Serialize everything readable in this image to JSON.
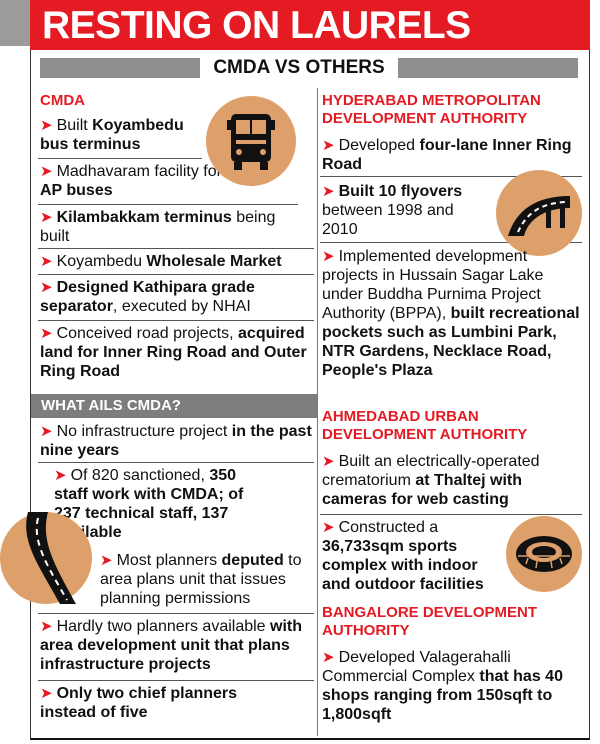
{
  "title": "RESTING ON LAURELS",
  "subtitle": "CMDA VS OTHERS",
  "colors": {
    "accent": "#e51b24",
    "gray_bar": "#8e8e8e",
    "icon_bg": "#dea06a"
  },
  "icons": [
    "bus-icon",
    "road-icon",
    "flyover-icon",
    "stadium-icon"
  ],
  "left": {
    "cmda_head": "CMDA",
    "items": [
      {
        "pre": "Built ",
        "bold": "Koyambedu bus terminus",
        "post": ""
      },
      {
        "pre": "Madhavaram facility for ",
        "bold": "AP buses",
        "post": ""
      },
      {
        "pre": "",
        "bold": "Kilambakkam terminus",
        "post": " being built"
      },
      {
        "pre": "Koyambedu ",
        "bold": "Wholesale Market",
        "post": ""
      },
      {
        "pre": "",
        "bold": "Designed Kathipara grade separator",
        "post": ", executed by NHAI"
      },
      {
        "pre": "Conceived road projects, ",
        "bold": "acquired land for Inner Ring Road and Outer Ring Road",
        "post": ""
      }
    ],
    "ails_head": "WHAT AILS CMDA?",
    "ails": [
      {
        "pre": "No infrastructure project ",
        "bold": "in the past nine years",
        "post": ""
      },
      {
        "pre": "Of 820 sanctioned, ",
        "bold": "350 staff work with CMDA; of 237 technical staff, 137 available",
        "post": ""
      },
      {
        "pre": "Most planners ",
        "bold": "deputed",
        "post": " to area plans unit that issues planning permissions"
      },
      {
        "pre": "Hardly two planners available ",
        "bold": "with area development unit that plans infrastructure projects",
        "post": ""
      },
      {
        "pre": "",
        "bold": "Only two chief planners instead of five",
        "post": ""
      }
    ]
  },
  "right": {
    "hmda_head": "HYDERABAD METROPOLITAN DEVELOPMENT AUTHORITY",
    "hmda": [
      {
        "pre": "Developed ",
        "bold": "four-lane Inner Ring Road",
        "post": ""
      },
      {
        "pre": "",
        "bold": "Built 10 flyovers",
        "post": " between 1998 and 2010"
      },
      {
        "pre": "Implemented development projects in Hussain Sagar Lake under Buddha Purnima Project Authority (BPPA), ",
        "bold": "built recreational pockets such as Lumbini Park, NTR Gardens, Necklace Road, People's Plaza",
        "post": ""
      }
    ],
    "auda_head": "AHMEDABAD URBAN DEVELOPMENT AUTHORITY",
    "auda": [
      {
        "pre": "Built an electrically-operated crematorium ",
        "bold": "at Thaltej with cameras for web casting",
        "post": ""
      },
      {
        "pre": "Constructed a ",
        "bold": "36,733sqm sports complex with indoor and outdoor facilities",
        "post": ""
      }
    ],
    "bda_head": "BANGALORE DEVELOPMENT AUTHORITY",
    "bda": [
      {
        "pre": "Developed Valagerahalli Commercial Complex ",
        "bold": "that has 40 shops ranging from 150sqft to 1,800sqft",
        "post": ""
      }
    ]
  }
}
